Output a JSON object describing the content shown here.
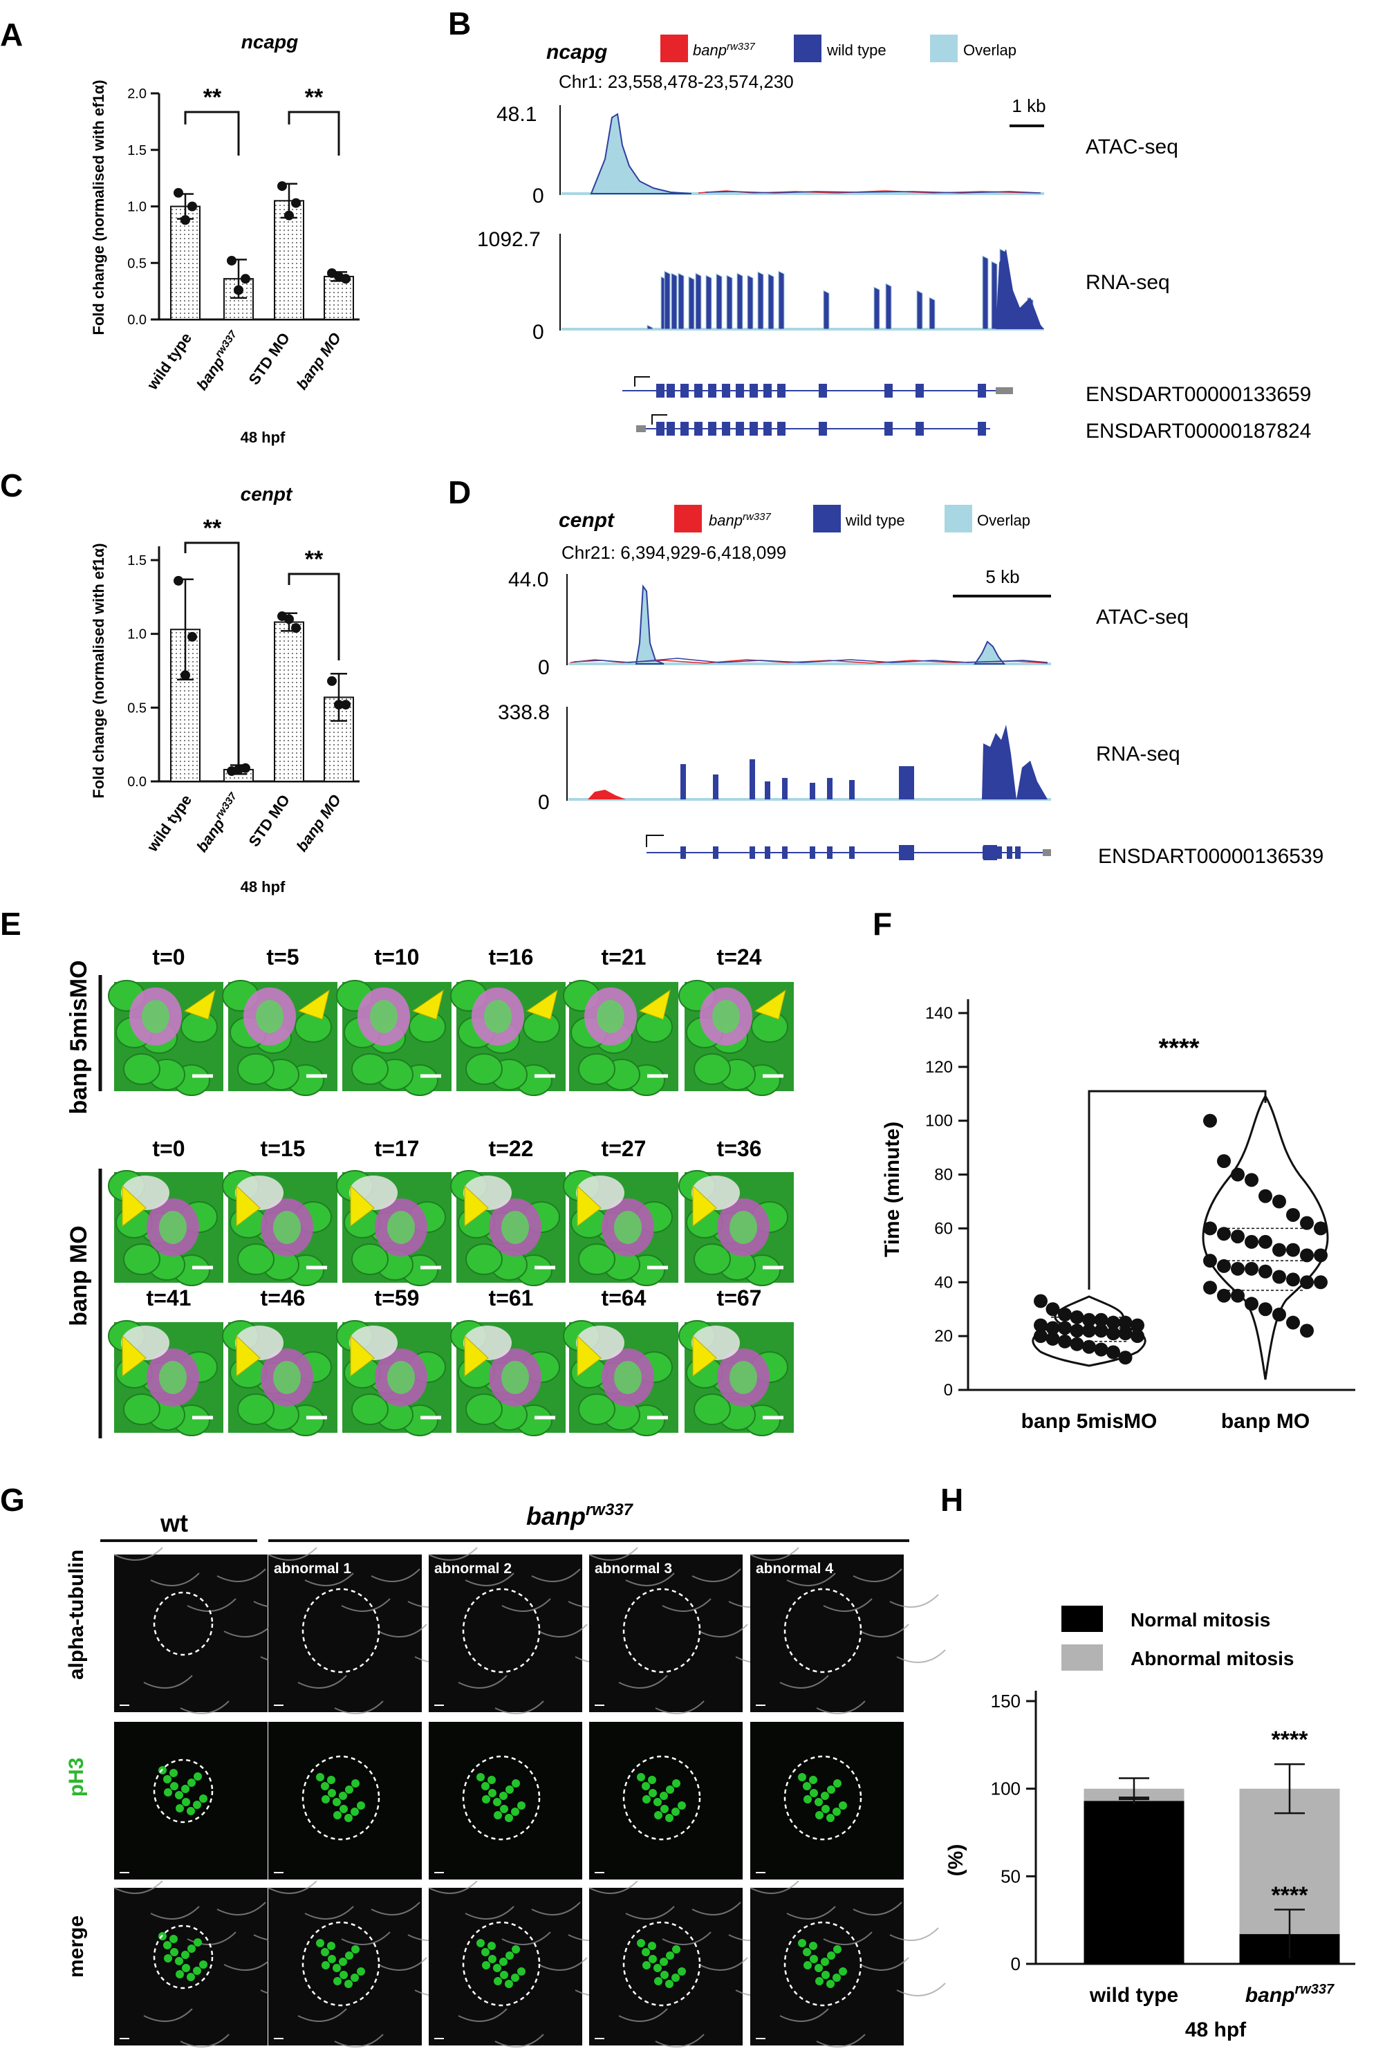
{
  "panels": {
    "A": {
      "letter": "A",
      "gene": "ncapg",
      "ylabel": "Fold change (normalised with ef1α)",
      "yticks": [
        "0.0",
        "0.5",
        "1.0",
        "1.5",
        "2.0"
      ],
      "categories": [
        "wild type",
        "banp",
        "STD MO",
        "banp MO"
      ],
      "banp_sup": "rw337",
      "stars": [
        "**",
        "**"
      ],
      "xtitle": "48 hpf"
    },
    "B": {
      "letter": "B",
      "gene": "ncapg",
      "legend": [
        "banp",
        "wild type",
        "Overlap"
      ],
      "legend_sup": "rw337",
      "coords": "Chr1: 23,558,478-23,574,230",
      "scale": "1 kb",
      "atac_max": "48.1",
      "atac_zero": "0",
      "rna_max": "1092.7",
      "rna_zero": "0",
      "track_atac": "ATAC-seq",
      "track_rna": "RNA-seq",
      "transcripts": [
        "ENSDART00000133659",
        "ENSDART00000187824"
      ]
    },
    "C": {
      "letter": "C",
      "gene": "cenpt",
      "ylabel": "Fold change (normalised with ef1α)",
      "yticks": [
        "0.0",
        "0.5",
        "1.0",
        "1.5"
      ],
      "categories": [
        "wild type",
        "banp",
        "STD MO",
        "banp MO"
      ],
      "banp_sup": "rw337",
      "stars": [
        "**",
        "**"
      ],
      "xtitle": "48 hpf"
    },
    "D": {
      "letter": "D",
      "gene": "cenpt",
      "legend": [
        "banp",
        "wild type",
        "Overlap"
      ],
      "legend_sup": "rw337",
      "coords": "Chr21: 6,394,929-6,418,099",
      "scale": "5 kb",
      "atac_max": "44.0",
      "atac_zero": "0",
      "rna_max": "338.8",
      "rna_zero": "0",
      "track_atac": "ATAC-seq",
      "track_rna": "RNA-seq",
      "transcripts": [
        "ENSDART00000136539"
      ]
    },
    "E": {
      "letter": "E",
      "row1_label": "banp 5misMO",
      "row1_times": [
        "t=0",
        "t=5",
        "t=10",
        "t=16",
        "t=21",
        "t=24"
      ],
      "row2_label": "banp MO",
      "row2_times": [
        "t=0",
        "t=15",
        "t=17",
        "t=22",
        "t=27",
        "t=36"
      ],
      "row3_times": [
        "t=41",
        "t=46",
        "t=59",
        "t=61",
        "t=64",
        "t=67"
      ]
    },
    "F": {
      "letter": "F",
      "ylabel": "Time (minute)",
      "yticks": [
        "0",
        "20",
        "40",
        "60",
        "80",
        "100",
        "120",
        "140"
      ],
      "categories": [
        "banp 5misMO",
        "banp MO"
      ],
      "stars": "****"
    },
    "G": {
      "letter": "G",
      "wt": "wt",
      "banp": "banp",
      "banp_sup": "rw337",
      "rows": [
        "alpha-tubulin",
        "pH3",
        "merge"
      ],
      "abnormal": [
        "abnormal 1",
        "abnormal 2",
        "abnormal 3",
        "abnormal 4"
      ]
    },
    "H": {
      "letter": "H",
      "legend": [
        "Normal mitosis",
        "Abnormal mitosis"
      ],
      "ylabel": "(%)",
      "yticks": [
        "0",
        "50",
        "100",
        "150"
      ],
      "categories": [
        "wild type",
        "banp"
      ],
      "banp_sup": "rw337",
      "stars": [
        "****",
        "****"
      ],
      "xtitle": "48 hpf"
    }
  },
  "colors": {
    "banp_mutant": "#e8242b",
    "wild_type": "#2f3f9e",
    "overlap": "#a9d6e3",
    "arrowhead": "#f5e600",
    "gfp": "#2db62e",
    "normal": "#000000",
    "abnormal": "#b3b3b3"
  },
  "chart_data": [
    {
      "panel": "A",
      "type": "bar",
      "title": "ncapg",
      "ylabel": "Fold change (normalised with ef1α)",
      "categories": [
        "wild type",
        "banp rw337",
        "STD MO",
        "banp MO"
      ],
      "values": [
        1.0,
        0.36,
        1.05,
        0.38
      ],
      "errors": [
        0.11,
        0.17,
        0.15,
        0.04
      ],
      "points": [
        [
          1.12,
          1.0,
          0.88
        ],
        [
          0.52,
          0.36,
          0.26
        ],
        [
          1.18,
          1.03,
          0.92
        ],
        [
          0.41,
          0.36,
          0.38
        ]
      ],
      "ylim": [
        0,
        2.0
      ]
    },
    {
      "panel": "C",
      "type": "bar",
      "title": "cenpt",
      "ylabel": "Fold change (normalised with ef1α)",
      "categories": [
        "wild type",
        "banp rw337",
        "STD MO",
        "banp MO"
      ],
      "values": [
        1.03,
        0.08,
        1.08,
        0.57
      ],
      "errors": [
        0.34,
        0.03,
        0.06,
        0.16
      ],
      "points": [
        [
          1.36,
          0.98,
          0.72
        ],
        [
          0.07,
          0.09,
          0.08
        ],
        [
          1.12,
          1.04,
          1.1
        ],
        [
          0.68,
          0.52,
          0.52
        ]
      ],
      "ylim": [
        0,
        1.6
      ]
    },
    {
      "panel": "F",
      "type": "scatter",
      "ylabel": "Time (minute)",
      "categories": [
        "banp 5misMO",
        "banp MO"
      ],
      "series": [
        {
          "name": "banp 5misMO",
          "values": [
            33,
            30,
            28,
            27,
            26,
            26,
            25,
            25,
            24,
            24,
            23,
            23,
            22,
            22,
            22,
            21,
            21,
            20,
            20,
            19,
            18,
            17,
            16,
            15,
            14,
            12
          ]
        },
        {
          "name": "banp MO",
          "values": [
            100,
            85,
            80,
            78,
            72,
            70,
            65,
            62,
            60,
            60,
            58,
            57,
            55,
            55,
            52,
            52,
            50,
            50,
            48,
            46,
            45,
            45,
            44,
            42,
            41,
            40,
            40,
            38,
            35,
            35,
            32,
            30,
            28,
            25,
            22
          ]
        }
      ],
      "ylim": [
        0,
        140
      ]
    },
    {
      "panel": "H",
      "type": "bar",
      "ylabel": "(%)",
      "categories": [
        "wild type",
        "banp rw337"
      ],
      "series": [
        {
          "name": "Normal mitosis",
          "values": [
            93,
            17
          ],
          "errors": [
            2,
            14
          ]
        },
        {
          "name": "Abnormal mitosis",
          "values": [
            7,
            83
          ],
          "errors": [
            6,
            14
          ]
        }
      ],
      "ylim": [
        0,
        150
      ]
    }
  ]
}
